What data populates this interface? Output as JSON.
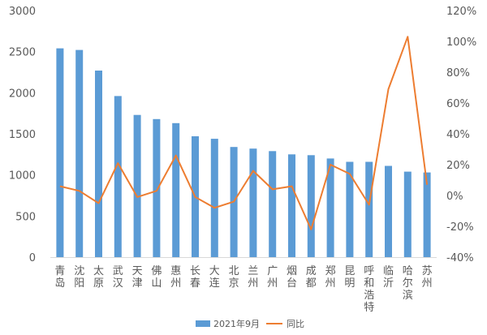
{
  "chart_data": {
    "type": "bar+line",
    "categories": [
      "青岛",
      "沈阳",
      "太原",
      "武汉",
      "天津",
      "佛山",
      "惠州",
      "长春",
      "大连",
      "北京",
      "兰州",
      "广州",
      "烟台",
      "成都",
      "郑州",
      "昆明",
      "呼和浩特",
      "临沂",
      "哈尔滨",
      "苏州"
    ],
    "series": [
      {
        "name": "2021年9月",
        "type": "bar",
        "axis": "left",
        "color": "#5B9BD5",
        "values": [
          2540,
          2520,
          2270,
          1960,
          1730,
          1680,
          1630,
          1470,
          1440,
          1340,
          1320,
          1290,
          1250,
          1240,
          1200,
          1160,
          1160,
          1110,
          1040,
          1030
        ]
      },
      {
        "name": "同比",
        "type": "line",
        "axis": "right",
        "color": "#ED7D31",
        "values": [
          6,
          3,
          -5,
          21,
          -1,
          3,
          26,
          -1,
          -8,
          -4,
          16,
          4,
          6,
          -22,
          20,
          14,
          -6,
          69,
          103,
          7
        ]
      }
    ],
    "yleft": {
      "min": 0,
      "max": 3000,
      "step": 500,
      "ticks": [
        "0",
        "500",
        "1000",
        "1500",
        "2000",
        "2500",
        "3000"
      ]
    },
    "yright": {
      "min": -40,
      "max": 120,
      "step": 20,
      "ticks": [
        "-40%",
        "-20%",
        "0%",
        "20%",
        "40%",
        "60%",
        "80%",
        "100%",
        "120%"
      ]
    },
    "grid": false,
    "legend_position": "bottom"
  }
}
